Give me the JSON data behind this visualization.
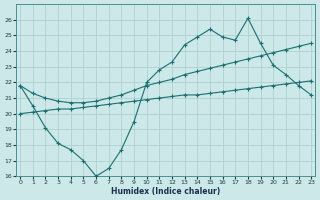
{
  "xlabel": "Humidex (Indice chaleur)",
  "x": [
    0,
    1,
    2,
    3,
    4,
    5,
    6,
    7,
    8,
    9,
    10,
    11,
    12,
    13,
    14,
    15,
    16,
    17,
    18,
    19,
    20,
    21,
    22,
    23
  ],
  "line1": [
    21.8,
    20.5,
    19.1,
    18.1,
    17.7,
    17.0,
    16.0,
    16.5,
    17.7,
    19.5,
    22.0,
    22.8,
    23.3,
    24.4,
    24.9,
    25.4,
    24.9,
    24.7,
    26.1,
    24.5,
    23.1,
    22.5,
    21.8,
    21.2
  ],
  "line2": [
    21.8,
    21.3,
    21.0,
    20.8,
    20.7,
    20.7,
    20.8,
    21.0,
    21.2,
    21.5,
    21.8,
    22.0,
    22.2,
    22.5,
    22.7,
    22.9,
    23.1,
    23.3,
    23.5,
    23.7,
    23.9,
    24.1,
    24.3,
    24.5
  ],
  "line3": [
    20.0,
    20.1,
    20.2,
    20.3,
    20.3,
    20.4,
    20.5,
    20.6,
    20.7,
    20.8,
    20.9,
    21.0,
    21.1,
    21.2,
    21.2,
    21.3,
    21.4,
    21.5,
    21.6,
    21.7,
    21.8,
    21.9,
    22.0,
    22.1
  ],
  "bg_color": "#cce8e8",
  "grid_color": "#aacccc",
  "line_color": "#1a7070",
  "ylim_min": 16,
  "ylim_max": 27,
  "yticks": [
    16,
    17,
    18,
    19,
    20,
    21,
    22,
    23,
    24,
    25,
    26
  ],
  "xlim_min": -0.3,
  "xlim_max": 23.3,
  "xticks": [
    0,
    1,
    2,
    3,
    4,
    5,
    6,
    7,
    8,
    9,
    10,
    11,
    12,
    13,
    14,
    15,
    16,
    17,
    18,
    19,
    20,
    21,
    22,
    23
  ],
  "xticklabels": [
    "0",
    "1",
    "2",
    "3",
    "4",
    "5",
    "6",
    "7",
    "8",
    "9",
    "10",
    "11",
    "12",
    "13",
    "14",
    "15",
    "16",
    "17",
    "18",
    "19",
    "20",
    "21",
    "22",
    "23"
  ]
}
